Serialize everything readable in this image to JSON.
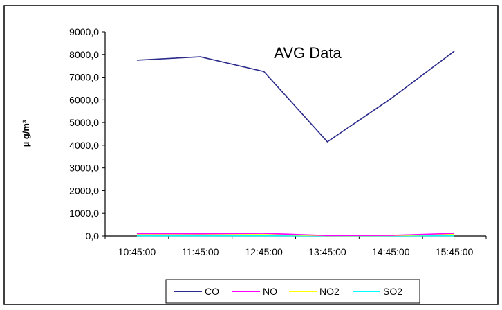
{
  "chart_data": {
    "type": "line",
    "title": "AVG Data",
    "ylabel": "µ g/m³",
    "xlabel": "",
    "categories": [
      "10:45:00",
      "11:45:00",
      "12:45:00",
      "13:45:00",
      "14:45:00",
      "15:45:00"
    ],
    "ylim": [
      0,
      9000
    ],
    "yticks": [
      0,
      1000,
      2000,
      3000,
      4000,
      5000,
      6000,
      7000,
      8000,
      9000
    ],
    "ytick_labels": [
      "0,0",
      "1000,0",
      "2000,0",
      "3000,0",
      "4000,0",
      "5000,0",
      "6000,0",
      "7000,0",
      "8000,0",
      "9000,0"
    ],
    "grid": false,
    "legend_position": "bottom",
    "series": [
      {
        "name": "CO",
        "color": "#2b2b8c",
        "values": [
          7750,
          7900,
          7250,
          4150,
          6050,
          8150
        ]
      },
      {
        "name": "NO",
        "color": "#ff00ff",
        "values": [
          110,
          100,
          120,
          20,
          30,
          120
        ]
      },
      {
        "name": "NO2",
        "color": "#ffff00",
        "values": [
          60,
          55,
          65,
          15,
          20,
          70
        ]
      },
      {
        "name": "SO2",
        "color": "#00ffff",
        "values": [
          10,
          10,
          10,
          5,
          5,
          10
        ]
      }
    ]
  }
}
